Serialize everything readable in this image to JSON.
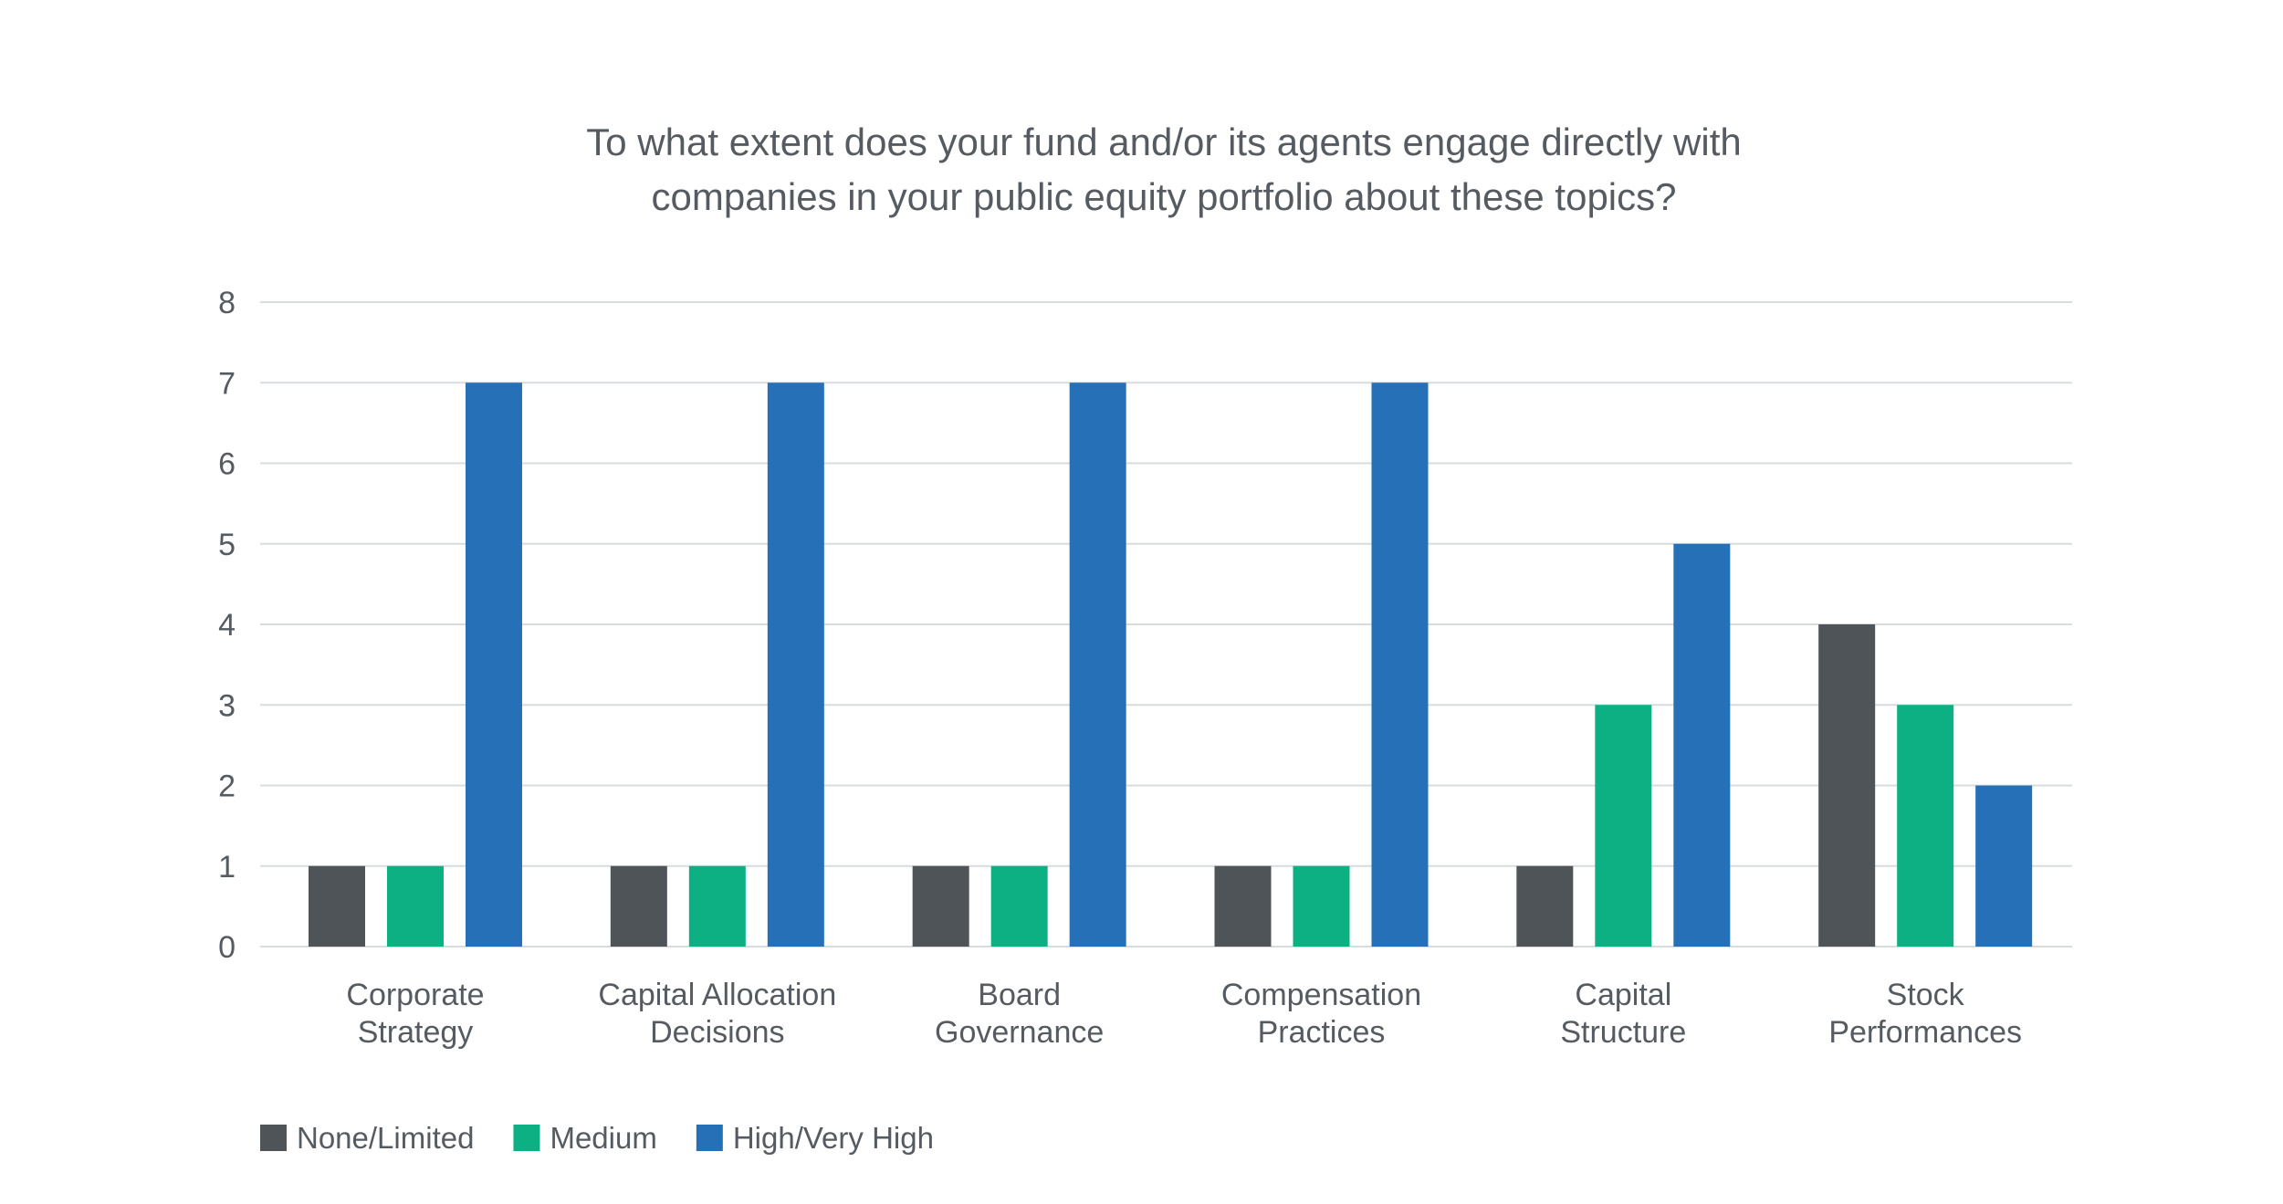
{
  "chart_data": {
    "type": "bar",
    "title_lines": [
      "To what extent does your fund and/or its agents engage directly with",
      "companies in your public equity portfolio about these topics?"
    ],
    "categories": [
      [
        "Corporate",
        "Strategy"
      ],
      [
        "Capital Allocation",
        "Decisions"
      ],
      [
        "Board",
        "Governance"
      ],
      [
        "Compensation",
        "Practices"
      ],
      [
        "Capital",
        "Structure"
      ],
      [
        "Stock",
        "Performances"
      ]
    ],
    "series": [
      {
        "name": "None/Limited",
        "color": "#4f5458",
        "values": [
          1,
          1,
          1,
          1,
          1,
          4
        ]
      },
      {
        "name": "Medium",
        "color": "#0cb083",
        "values": [
          1,
          1,
          1,
          1,
          3,
          3
        ]
      },
      {
        "name": "High/Very High",
        "color": "#2570b6",
        "values": [
          7,
          7,
          7,
          7,
          5,
          2
        ]
      }
    ],
    "yticks": [
      "0",
      "1",
      "2",
      "3",
      "4",
      "5",
      "6",
      "7",
      "8"
    ],
    "ylim": [
      0,
      8
    ],
    "grid": true,
    "legend_position": "bottom-left"
  }
}
